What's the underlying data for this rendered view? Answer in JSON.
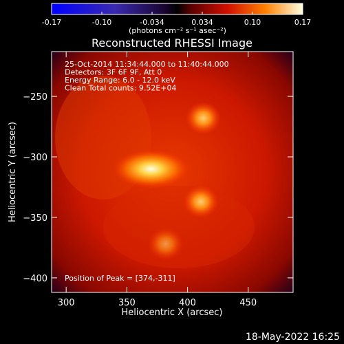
{
  "chart_data": {
    "type": "heatmap",
    "title": "Reconstructed RHESSI Image",
    "xlabel": "Heliocentric X (arcsec)",
    "ylabel": "Heliocentric Y (arcsec)",
    "xlim": [
      288,
      487
    ],
    "ylim": [
      -412,
      -213
    ],
    "x_ticks": [
      300,
      350,
      400,
      450
    ],
    "y_ticks": [
      -250,
      -300,
      -350,
      -400
    ],
    "colorbar": {
      "ticks": [
        "-0.17",
        "-0.10",
        "-0.034",
        "0.034",
        "0.10",
        "0.17"
      ],
      "range": [
        -0.17,
        0.17
      ],
      "unit_label": "(photons cm⁻² s⁻¹ asec⁻²)"
    },
    "info_lines": [
      "25-Oct-2014 11:34:44.000 to 11:40:44.000",
      "Detectors: 3F 6F 9F, Att 0",
      "Energy Range: 6.0 - 12.0 keV",
      "Clean    Total counts: 9.52E+04"
    ],
    "peak_text": "Position of Peak = [374,-311]",
    "sources": [
      {
        "x": 370,
        "y": -310,
        "peak": 0.17
      },
      {
        "x": 413,
        "y": -268,
        "peak": 0.12
      },
      {
        "x": 411,
        "y": -337,
        "peak": 0.12
      },
      {
        "x": 382,
        "y": -372,
        "peak": 0.08
      }
    ]
  },
  "timestamp": "18-May-2022 16:25"
}
